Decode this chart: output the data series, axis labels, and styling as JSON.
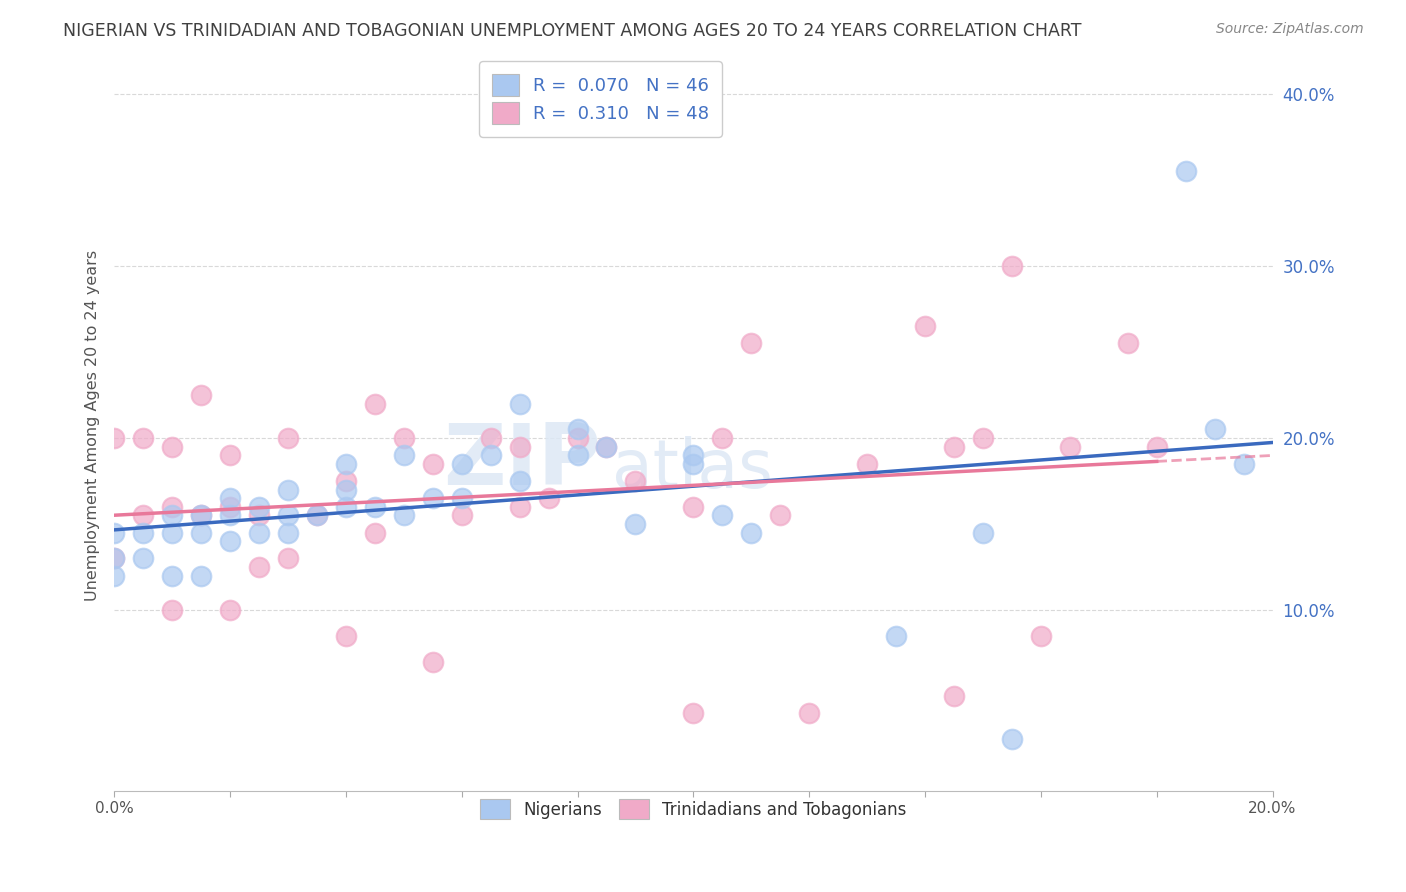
{
  "title": "NIGERIAN VS TRINIDADIAN AND TOBAGONIAN UNEMPLOYMENT AMONG AGES 20 TO 24 YEARS CORRELATION CHART",
  "source": "Source: ZipAtlas.com",
  "ylabel": "Unemployment Among Ages 20 to 24 years",
  "xlabel": "",
  "xlim": [
    0.0,
    0.2
  ],
  "ylim": [
    -0.005,
    0.42
  ],
  "xticks": [
    0.0,
    0.02,
    0.04,
    0.06,
    0.08,
    0.1,
    0.12,
    0.14,
    0.16,
    0.18,
    0.2
  ],
  "yticks": [
    0.1,
    0.2,
    0.3,
    0.4
  ],
  "xtick_labels": [
    "0.0%",
    "",
    "",
    "",
    "",
    "",
    "",
    "",
    "",
    "",
    "20.0%"
  ],
  "ytick_labels": [
    "10.0%",
    "20.0%",
    "30.0%",
    "40.0%"
  ],
  "series1_label": "Nigerians",
  "series2_label": "Trinidadians and Tobagonians",
  "series1_color": "#aac8f0",
  "series2_color": "#f0aac8",
  "series1_line_color": "#3a6abf",
  "series2_line_color": "#e8789a",
  "series1_R": 0.07,
  "series1_N": 46,
  "series2_R": 0.31,
  "series2_N": 48,
  "watermark_zip": "ZIP",
  "watermark_atlas": "atlas",
  "background_color": "#ffffff",
  "grid_color": "#d0d0d0",
  "title_color": "#404040",
  "legend_label_color": "#4472c4",
  "ytick_color": "#4472c4",
  "series1_x": [
    0.0,
    0.0,
    0.0,
    0.005,
    0.005,
    0.01,
    0.01,
    0.01,
    0.015,
    0.015,
    0.015,
    0.02,
    0.02,
    0.02,
    0.025,
    0.025,
    0.03,
    0.03,
    0.03,
    0.035,
    0.04,
    0.04,
    0.04,
    0.045,
    0.05,
    0.05,
    0.055,
    0.06,
    0.06,
    0.065,
    0.07,
    0.07,
    0.08,
    0.08,
    0.085,
    0.09,
    0.1,
    0.1,
    0.105,
    0.11,
    0.135,
    0.15,
    0.155,
    0.185,
    0.19,
    0.195
  ],
  "series1_y": [
    0.12,
    0.13,
    0.145,
    0.13,
    0.145,
    0.12,
    0.145,
    0.155,
    0.12,
    0.145,
    0.155,
    0.14,
    0.155,
    0.165,
    0.145,
    0.16,
    0.145,
    0.155,
    0.17,
    0.155,
    0.16,
    0.17,
    0.185,
    0.16,
    0.155,
    0.19,
    0.165,
    0.165,
    0.185,
    0.19,
    0.175,
    0.22,
    0.19,
    0.205,
    0.195,
    0.15,
    0.185,
    0.19,
    0.155,
    0.145,
    0.085,
    0.145,
    0.025,
    0.355,
    0.205,
    0.185
  ],
  "series2_x": [
    0.0,
    0.0,
    0.005,
    0.005,
    0.01,
    0.01,
    0.01,
    0.015,
    0.015,
    0.02,
    0.02,
    0.02,
    0.025,
    0.025,
    0.03,
    0.03,
    0.035,
    0.04,
    0.04,
    0.045,
    0.045,
    0.05,
    0.055,
    0.055,
    0.06,
    0.065,
    0.07,
    0.07,
    0.075,
    0.08,
    0.085,
    0.09,
    0.1,
    0.1,
    0.105,
    0.11,
    0.115,
    0.12,
    0.13,
    0.14,
    0.145,
    0.145,
    0.15,
    0.155,
    0.16,
    0.165,
    0.175,
    0.18
  ],
  "series2_y": [
    0.13,
    0.2,
    0.155,
    0.2,
    0.1,
    0.16,
    0.195,
    0.155,
    0.225,
    0.1,
    0.16,
    0.19,
    0.125,
    0.155,
    0.13,
    0.2,
    0.155,
    0.085,
    0.175,
    0.145,
    0.22,
    0.2,
    0.07,
    0.185,
    0.155,
    0.2,
    0.16,
    0.195,
    0.165,
    0.2,
    0.195,
    0.175,
    0.04,
    0.16,
    0.2,
    0.255,
    0.155,
    0.04,
    0.185,
    0.265,
    0.05,
    0.195,
    0.2,
    0.3,
    0.085,
    0.195,
    0.255,
    0.195
  ]
}
